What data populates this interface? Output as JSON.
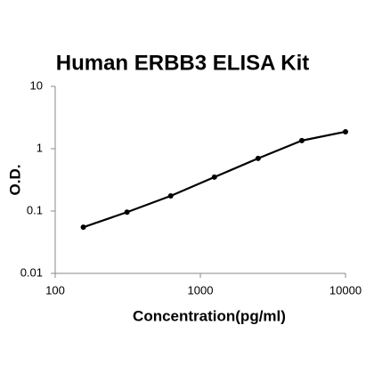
{
  "chart_data": {
    "type": "line",
    "title": "Human ERBB3 ELISA Kit",
    "x_label": "Concentration(pg/ml)",
    "y_label": "O.D.",
    "x": [
      156.25,
      312.5,
      625,
      1250,
      2500,
      5000,
      10000
    ],
    "series": [
      {
        "color": "#000000",
        "values": [
          0.055,
          0.096,
          0.175,
          0.35,
          0.7,
          1.35,
          1.87
        ]
      }
    ],
    "xlim": [
      100,
      10000
    ],
    "xticks": [
      100,
      1000,
      10000
    ],
    "ylim": [
      0.01,
      10
    ],
    "yticks": [
      0.01,
      0.1,
      1,
      10
    ],
    "xscale": "log",
    "yscale": "log",
    "grid": false,
    "markers": true
  }
}
